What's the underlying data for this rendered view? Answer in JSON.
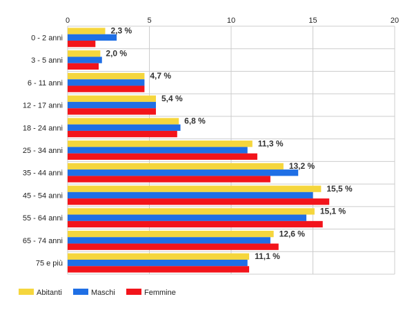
{
  "chart_data": {
    "type": "bar",
    "orientation": "horizontal",
    "categories": [
      "0 - 2 anni",
      "3 - 5 anni",
      "6 - 11 anni",
      "12 - 17 anni",
      "18 - 24 anni",
      "25 - 34 anni",
      "35 - 44 anni",
      "45 - 54 anni",
      "55 - 64 anni",
      "65 - 74 anni",
      "75 e più"
    ],
    "series": [
      {
        "name": "Abitanti",
        "color": "#f5d63d",
        "values": [
          2.3,
          2.0,
          4.7,
          5.4,
          6.8,
          11.3,
          13.2,
          15.5,
          15.1,
          12.6,
          11.1
        ]
      },
      {
        "name": "Maschi",
        "color": "#1f6fe5",
        "values": [
          3.0,
          2.1,
          4.7,
          5.4,
          6.9,
          11.0,
          14.1,
          15.0,
          14.6,
          12.4,
          11.0
        ]
      },
      {
        "name": "Femmine",
        "color": "#f2141b",
        "values": [
          1.7,
          1.9,
          4.7,
          5.4,
          6.7,
          11.6,
          12.4,
          16.0,
          15.6,
          12.9,
          11.1
        ]
      }
    ],
    "data_labels": [
      "2,3 %",
      "2,0 %",
      "4,7 %",
      "5,4 %",
      "6,8 %",
      "11,3 %",
      "13,2 %",
      "15,5 %",
      "15,1 %",
      "12,6 %",
      "11,1 %"
    ],
    "xlim": [
      0,
      20
    ],
    "xticks": [
      0,
      5,
      10,
      15,
      20
    ],
    "xtick_labels": [
      "0",
      "5",
      "10",
      "15",
      "20"
    ],
    "grid": true,
    "x_axis_position": "top",
    "legend_position": "bottom-left"
  }
}
